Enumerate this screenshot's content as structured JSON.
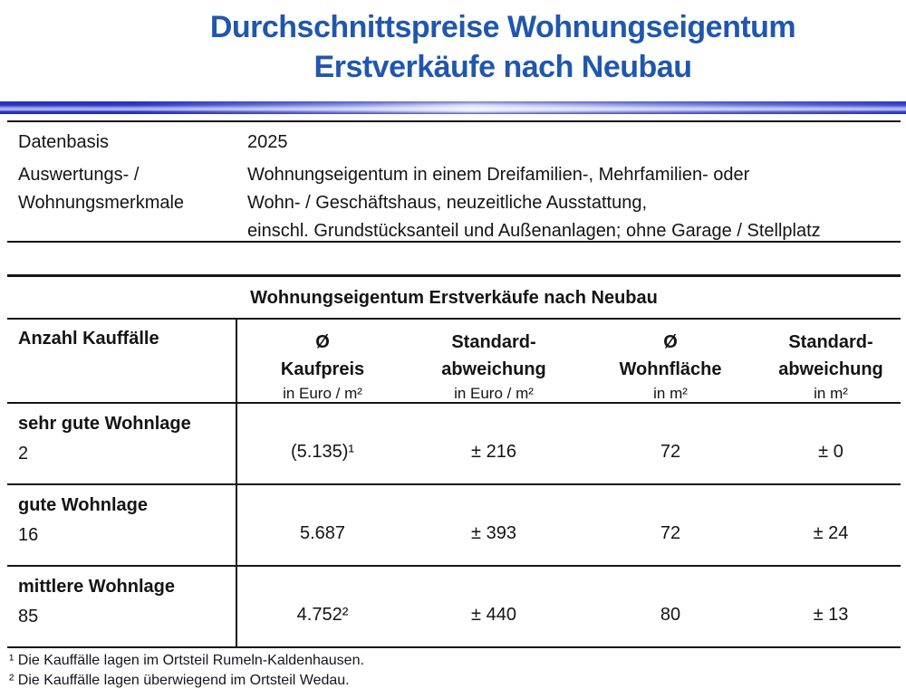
{
  "page": {
    "title_line1": "Durchschnittspreise Wohnungseigentum",
    "title_line2": "Erstverkäufe nach Neubau",
    "accent_color": "#2057AE",
    "bar_color": "#2E3CC8",
    "line_color": "#161616"
  },
  "meta": {
    "rows": [
      {
        "label": "Datenbasis",
        "value": "2025"
      },
      {
        "label": "Auswertungs- /\nWohnungsmerkmale",
        "value": "Wohnungseigentum in einem Dreifamilien-, Mehrfamilien- oder\nWohn- / Geschäftshaus, neuzeitliche Ausstattung,\neinschl. Grundstücksanteil und Außenanlagen; ohne Garage / Stellplatz"
      }
    ]
  },
  "table": {
    "title": "Wohnungseigentum Erstverkäufe nach Neubau",
    "header": {
      "col1": "Anzahl Kauffälle",
      "cols": [
        {
          "line1": "Ø",
          "line2": "Kaufpreis",
          "unit": "in Euro / m²"
        },
        {
          "line1": "Standard-",
          "line2": "abweichung",
          "unit": "in Euro / m²"
        },
        {
          "line1": "Ø",
          "line2": "Wohnfläche",
          "unit": "in m²"
        },
        {
          "line1": "Standard-",
          "line2": "abweichung",
          "unit": "in m²"
        }
      ]
    },
    "rows": [
      {
        "label": "sehr gute Wohnlage",
        "count": "2",
        "values": [
          "(5.135)¹",
          "± 216",
          "72",
          "± 0"
        ]
      },
      {
        "label": "gute Wohnlage",
        "count": "16",
        "values": [
          "5.687",
          "± 393",
          "72",
          "± 24"
        ]
      },
      {
        "label": "mittlere Wohnlage",
        "count": "85",
        "values": [
          "4.752²",
          "± 440",
          "80",
          "± 13"
        ]
      }
    ]
  },
  "footnotes": [
    "¹ Die Kauffälle lagen im Ortsteil Rumeln-Kaldenhausen.",
    "² Die Kauffälle lagen überwiegend im Ortsteil Wedau."
  ]
}
